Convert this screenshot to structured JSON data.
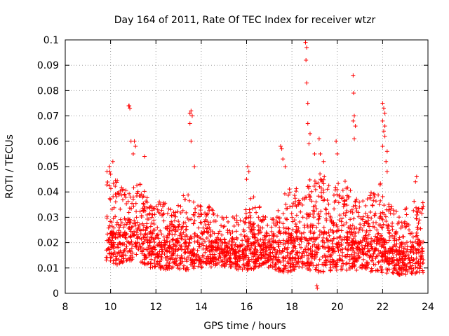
{
  "chart_data": {
    "type": "scatter",
    "title": "Day 164 of 2011, Rate Of TEC Index for receiver wtzr",
    "xlabel": "GPS time / hours",
    "ylabel": "ROTI / TECUs",
    "xlim": [
      8,
      24
    ],
    "ylim": [
      0,
      0.1
    ],
    "xticks": [
      8,
      10,
      12,
      14,
      16,
      18,
      20,
      22,
      24
    ],
    "yticks": [
      0,
      0.01,
      0.02,
      0.03,
      0.04,
      0.05,
      0.06,
      0.07,
      0.08,
      0.09,
      0.1
    ],
    "xtick_labels": [
      "8",
      "10",
      "12",
      "14",
      "16",
      "18",
      "20",
      "22",
      "24"
    ],
    "ytick_labels": [
      "0",
      "0.01",
      "0.02",
      "0.03",
      "0.04",
      "0.05",
      "0.06",
      "0.07",
      "0.08",
      "0.09",
      "0.1"
    ],
    "grid": true,
    "marker": "+",
    "series_color": "#ff0000",
    "envelope": {
      "x": [
        9.8,
        10.3,
        10.8,
        11.3,
        11.8,
        12.3,
        12.8,
        13.3,
        13.8,
        14.3,
        14.8,
        15.3,
        15.8,
        16.3,
        16.8,
        17.3,
        17.8,
        18.3,
        18.8,
        19.3,
        19.8,
        20.3,
        20.8,
        21.3,
        21.8,
        22.3,
        22.8,
        23.3,
        23.8
      ],
      "low": [
        0.01,
        0.011,
        0.013,
        0.012,
        0.01,
        0.009,
        0.01,
        0.009,
        0.01,
        0.01,
        0.011,
        0.01,
        0.009,
        0.009,
        0.011,
        0.009,
        0.008,
        0.01,
        0.009,
        0.008,
        0.009,
        0.009,
        0.009,
        0.009,
        0.008,
        0.007,
        0.007,
        0.007,
        0.008
      ],
      "high": [
        0.05,
        0.045,
        0.04,
        0.045,
        0.034,
        0.037,
        0.033,
        0.04,
        0.035,
        0.035,
        0.03,
        0.031,
        0.032,
        0.04,
        0.03,
        0.035,
        0.042,
        0.042,
        0.045,
        0.048,
        0.042,
        0.045,
        0.04,
        0.037,
        0.045,
        0.038,
        0.03,
        0.04,
        0.036
      ]
    },
    "spikes": [
      {
        "x": 9.95,
        "y": 0.05
      },
      {
        "x": 10.0,
        "y": 0.047
      },
      {
        "x": 10.1,
        "y": 0.052
      },
      {
        "x": 10.8,
        "y": 0.074
      },
      {
        "x": 10.85,
        "y": 0.073
      },
      {
        "x": 10.82,
        "y": 0.074
      },
      {
        "x": 10.9,
        "y": 0.06
      },
      {
        "x": 11.05,
        "y": 0.06
      },
      {
        "x": 11.1,
        "y": 0.058
      },
      {
        "x": 11.0,
        "y": 0.055
      },
      {
        "x": 11.5,
        "y": 0.054
      },
      {
        "x": 13.5,
        "y": 0.071
      },
      {
        "x": 13.55,
        "y": 0.072
      },
      {
        "x": 13.6,
        "y": 0.07
      },
      {
        "x": 13.5,
        "y": 0.067
      },
      {
        "x": 13.55,
        "y": 0.06
      },
      {
        "x": 13.7,
        "y": 0.05
      },
      {
        "x": 16.05,
        "y": 0.05
      },
      {
        "x": 16.1,
        "y": 0.048
      },
      {
        "x": 16.0,
        "y": 0.045
      },
      {
        "x": 17.5,
        "y": 0.058
      },
      {
        "x": 17.55,
        "y": 0.057
      },
      {
        "x": 17.6,
        "y": 0.053
      },
      {
        "x": 17.7,
        "y": 0.05
      },
      {
        "x": 18.6,
        "y": 0.099
      },
      {
        "x": 18.65,
        "y": 0.097
      },
      {
        "x": 18.62,
        "y": 0.092
      },
      {
        "x": 18.65,
        "y": 0.083
      },
      {
        "x": 18.7,
        "y": 0.075
      },
      {
        "x": 18.7,
        "y": 0.067
      },
      {
        "x": 18.8,
        "y": 0.063
      },
      {
        "x": 18.75,
        "y": 0.059
      },
      {
        "x": 19.2,
        "y": 0.061
      },
      {
        "x": 19.25,
        "y": 0.055
      },
      {
        "x": 19.0,
        "y": 0.055
      },
      {
        "x": 19.4,
        "y": 0.052
      },
      {
        "x": 19.95,
        "y": 0.06
      },
      {
        "x": 20.0,
        "y": 0.055
      },
      {
        "x": 20.7,
        "y": 0.086
      },
      {
        "x": 20.72,
        "y": 0.079
      },
      {
        "x": 20.75,
        "y": 0.07
      },
      {
        "x": 20.7,
        "y": 0.068
      },
      {
        "x": 20.8,
        "y": 0.066
      },
      {
        "x": 20.75,
        "y": 0.061
      },
      {
        "x": 22.0,
        "y": 0.075
      },
      {
        "x": 22.05,
        "y": 0.073
      },
      {
        "x": 22.1,
        "y": 0.071
      },
      {
        "x": 22.0,
        "y": 0.068
      },
      {
        "x": 22.1,
        "y": 0.066
      },
      {
        "x": 22.05,
        "y": 0.064
      },
      {
        "x": 22.1,
        "y": 0.062
      },
      {
        "x": 22.0,
        "y": 0.058
      },
      {
        "x": 22.2,
        "y": 0.056
      },
      {
        "x": 22.15,
        "y": 0.052
      },
      {
        "x": 22.2,
        "y": 0.048
      },
      {
        "x": 23.5,
        "y": 0.046
      },
      {
        "x": 23.45,
        "y": 0.044
      },
      {
        "x": 19.1,
        "y": 0.003
      },
      {
        "x": 19.12,
        "y": 0.002
      }
    ]
  }
}
